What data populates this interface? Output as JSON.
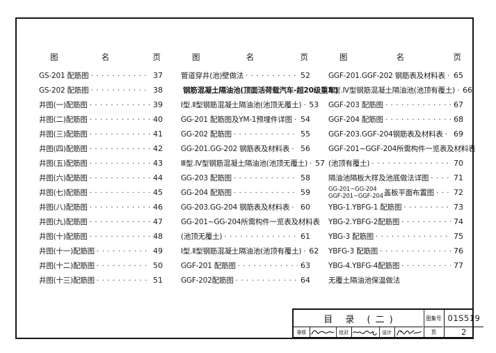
{
  "toc": {
    "header": {
      "figure": "图",
      "name": "名",
      "page": "页"
    },
    "columns": [
      {
        "entries": [
          {
            "text": "GS-201 配筋图",
            "page": "37"
          },
          {
            "text": "GS-202 配筋图",
            "page": "38"
          },
          {
            "text": "井图(一)配筋图",
            "page": "39"
          },
          {
            "text": "井图(二)配筋图",
            "page": "40"
          },
          {
            "text": "井图(三)配筋图",
            "page": "41"
          },
          {
            "text": "井图(四)配筋图",
            "page": "42"
          },
          {
            "text": "井图(五)配筋图",
            "page": "43"
          },
          {
            "text": "井图(六)配筋图",
            "page": "44"
          },
          {
            "text": "井图(七)配筋图",
            "page": "45"
          },
          {
            "text": "井图(八)配筋图",
            "page": "46"
          },
          {
            "text": "井图(九)配筋图",
            "page": "47"
          },
          {
            "text": "井图(十)配筋图",
            "page": "48"
          },
          {
            "text": "井图(十一)配筋图",
            "page": "49"
          },
          {
            "text": "井图(十二)配筋图",
            "page": "50"
          },
          {
            "text": "井图(十三)配筋图",
            "page": "51"
          }
        ]
      },
      {
        "entries": [
          {
            "text": "管道穿井(池)壁做法",
            "page": "52"
          },
          {
            "text": "钢筋混凝土隔油池(顶面活荷载汽车-超20级重车)",
            "bold": true
          },
          {
            "text": "Ⅰ型.Ⅱ型钢筋混凝土隔油池(池顶无覆土)",
            "page": "53"
          },
          {
            "text": "GG-201 配筋图及YM-1预埋件详图",
            "page": "54"
          },
          {
            "text": "GG-202 配筋图",
            "page": "55"
          },
          {
            "text": "GG-201.GG-202 钢筋表及材料表",
            "page": "56"
          },
          {
            "text": "Ⅲ型.Ⅳ型钢筋混凝土隔油池(池顶无覆土)",
            "page": "57"
          },
          {
            "text": "GG-203 配筋图",
            "page": "58"
          },
          {
            "text": "GG-204 配筋图",
            "page": "59"
          },
          {
            "text": "GG-203.GG-204 钢筋表及材料表",
            "page": "60"
          },
          {
            "text": "GG-201~GG-204所需构件一览表及材料表"
          },
          {
            "text": "(池顶无覆土)",
            "page": "61"
          },
          {
            "text": "Ⅰ型.Ⅱ型钢筋混凝土隔油池(池顶有覆土)",
            "page": "62"
          },
          {
            "text": "GGF-201 配筋图",
            "page": "63"
          },
          {
            "text": "GGF-202配筋图",
            "page": "64"
          }
        ]
      },
      {
        "entries": [
          {
            "text": "GGF-201.GGF-202 钢筋表及材料表",
            "page": "65"
          },
          {
            "text": "Ⅲ型.Ⅳ型钢筋混凝土隔油池(池顶有覆土)",
            "page": "66"
          },
          {
            "text": "GGF-203 配筋图",
            "page": "67"
          },
          {
            "text": "GGF-204 配筋图",
            "page": "68"
          },
          {
            "text": "GGF-203.GGF-204钢筋表及材料表",
            "page": "69"
          },
          {
            "text": "GGF-201~GGF-204所需构件一览表及材料表"
          },
          {
            "text": "(池顶有覆土)",
            "page": "70"
          },
          {
            "text": "隔油池隔板大样及池底做法详图",
            "page": "71"
          },
          {
            "stack": [
              "GG-201~GG-204",
              "GGF-201~GGF-204"
            ],
            "text": "盖板平面布置图",
            "page": "72"
          },
          {
            "text": "YBG-1.YBFG-1 配筋图",
            "page": "73"
          },
          {
            "text": "YBG-2.YBFG-2配筋图",
            "page": "74"
          },
          {
            "text": "YBG-3 配筋图",
            "page": "75"
          },
          {
            "text": "YBFG-3 配筋图",
            "page": "76"
          },
          {
            "text": "YBG-4.YBFG-4配筋图",
            "page": "77"
          },
          {
            "text": "无覆土隔油池保温做法"
          }
        ]
      }
    ]
  },
  "title_block": {
    "title": "目 录 (二)",
    "atlas_no_label": "图集号",
    "atlas_no": "01S519",
    "page_label": "页",
    "page_no": "2",
    "review_label": "审核",
    "check_label": "校对",
    "design_label": "设计"
  }
}
